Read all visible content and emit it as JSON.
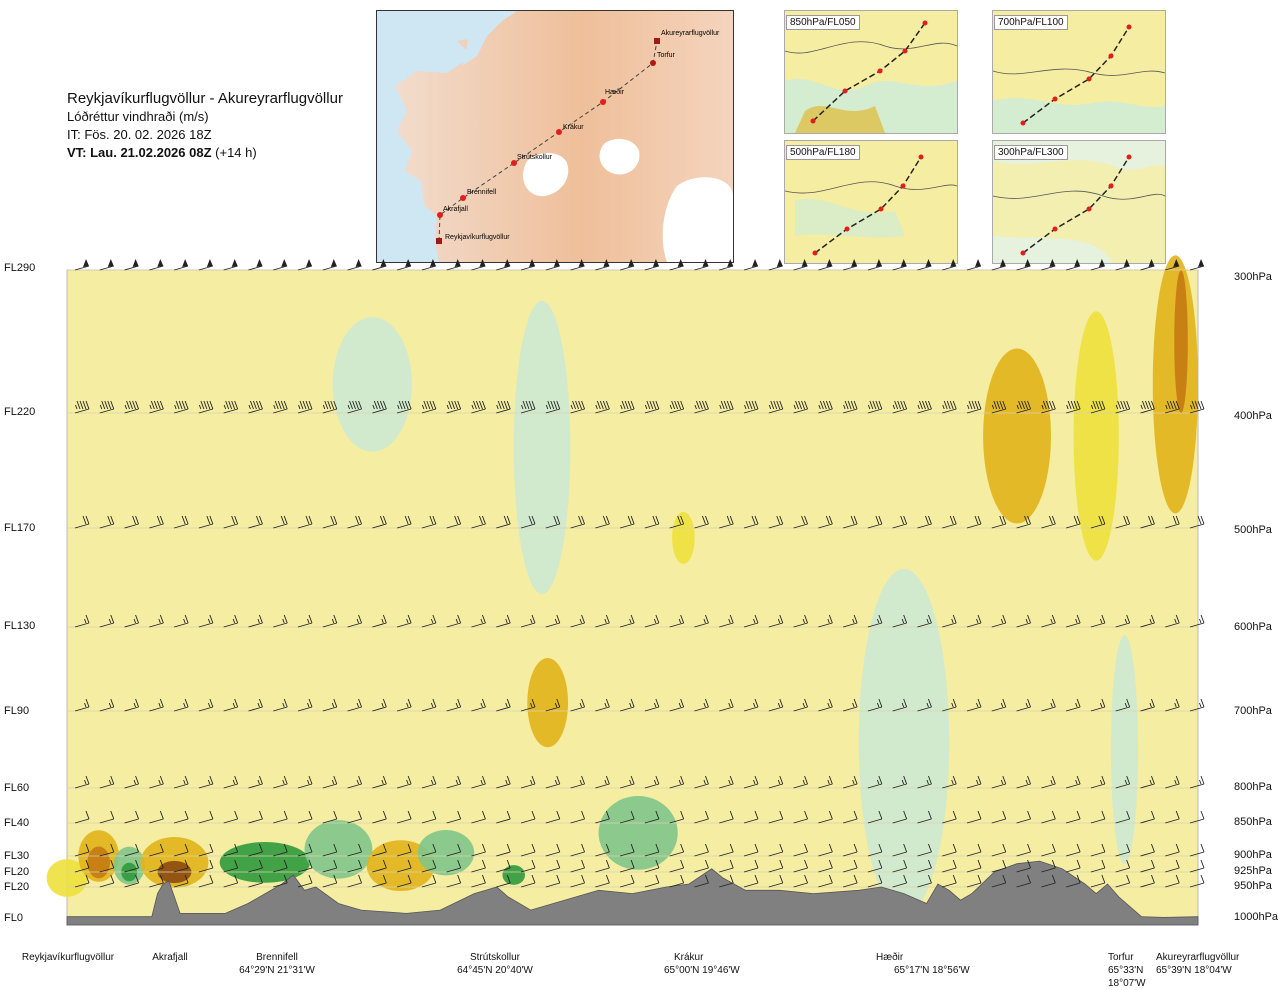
{
  "title": {
    "route": "Reykjavíkurflugvöllur - Akureyrarflugvöllur",
    "variable": "Lóðréttur vindhraði (m/s)",
    "issue_time": "IT: Fös. 20. 02. 2026 18Z",
    "valid_prefix": "VT: Lau. 21.02.2026 08Z",
    "valid_offset": "(+14 h)"
  },
  "route_map": {
    "waypoints": [
      "Reykjavíkurflugvöllur",
      "Akrafjall",
      "Brennifell",
      "Strútskollur",
      "Krákur",
      "Hæðir",
      "Torfur",
      "Akureyrarflugvöllur"
    ]
  },
  "level_panels": [
    {
      "label": "850hPa/FL050"
    },
    {
      "label": "700hPa/FL100"
    },
    {
      "label": "500hPa/FL180"
    },
    {
      "label": "300hPa/FL300"
    }
  ],
  "left_levels": [
    "FL290",
    "FL220",
    "FL170",
    "FL130",
    "FL90",
    "FL60",
    "FL40",
    "FL30",
    "FL20",
    "FL20",
    "FL0"
  ],
  "right_levels": [
    "300hPa",
    "400hPa",
    "500hPa",
    "600hPa",
    "700hPa",
    "800hPa",
    "850hPa",
    "900hPa",
    "925hPa",
    "950hPa",
    "1000hPa"
  ],
  "locations": [
    {
      "name": "Reykjavíkurflugvöllur",
      "coord": ""
    },
    {
      "name": "Akrafjall",
      "coord": ""
    },
    {
      "name": "Brennifell",
      "coord": "64°29'N 21°31'W"
    },
    {
      "name": "Strútskollur",
      "coord": "64°45'N 20°40'W"
    },
    {
      "name": "Krákur",
      "coord": "65°00'N 19°46'W"
    },
    {
      "name": "Hæðir",
      "coord": "65°17'N 18°56'W"
    },
    {
      "name": "Torfur",
      "coord": "65°33'N 18°07'W"
    },
    {
      "name": "Akureyrarflugvöllur",
      "coord": "65°39'N 18°04'W"
    }
  ],
  "chart_data": {
    "type": "heatmap",
    "title": "Reykjavíkurflugvöllur - Akureyrarflugvöllur",
    "subtitle": "Lóðréttur vindhraði (m/s)",
    "x_axis": "distance along route (0 = Reykjavíkurflugvöllur, 1 = Akureyrarflugvöllur)",
    "x_range": [
      0,
      1
    ],
    "y_axis": "pressure (hPa)",
    "y_range": [
      1000,
      300
    ],
    "pressure_levels": [
      300,
      400,
      500,
      600,
      700,
      800,
      850,
      900,
      925,
      950,
      1000
    ],
    "flight_levels": [
      "FL290",
      "FL220",
      "FL170",
      "FL130",
      "FL90",
      "FL60",
      "FL40",
      "FL30",
      "FL20",
      "FL20",
      "FL0"
    ],
    "waypoint_positions": [
      0.0,
      0.085,
      0.19,
      0.385,
      0.575,
      0.76,
      0.955,
      1.0
    ],
    "colors": {
      "background": "#f5eda2",
      "up_strong": "#2f9a3c",
      "up_medium": "#7fc58a",
      "up_weak": "#cde9d2",
      "near_zero": "#fefdf0",
      "down_weak": "#ede03c",
      "down_medium": "#e2b21a",
      "down_strong": "#c47a14",
      "down_extreme": "#8a4a0f",
      "terrain": "#808080"
    },
    "terrain_profile": [
      [
        0.0,
        995
      ],
      [
        0.075,
        995
      ],
      [
        0.08,
        960
      ],
      [
        0.085,
        945
      ],
      [
        0.09,
        940
      ],
      [
        0.095,
        965
      ],
      [
        0.1,
        990
      ],
      [
        0.14,
        990
      ],
      [
        0.16,
        975
      ],
      [
        0.19,
        945
      ],
      [
        0.2,
        930
      ],
      [
        0.21,
        955
      ],
      [
        0.22,
        950
      ],
      [
        0.24,
        975
      ],
      [
        0.26,
        985
      ],
      [
        0.3,
        990
      ],
      [
        0.33,
        985
      ],
      [
        0.36,
        960
      ],
      [
        0.38,
        950
      ],
      [
        0.39,
        965
      ],
      [
        0.41,
        985
      ],
      [
        0.43,
        975
      ],
      [
        0.45,
        965
      ],
      [
        0.47,
        955
      ],
      [
        0.5,
        960
      ],
      [
        0.53,
        950
      ],
      [
        0.55,
        945
      ],
      [
        0.57,
        920
      ],
      [
        0.58,
        935
      ],
      [
        0.6,
        955
      ],
      [
        0.63,
        955
      ],
      [
        0.66,
        960
      ],
      [
        0.7,
        955
      ],
      [
        0.72,
        950
      ],
      [
        0.74,
        960
      ],
      [
        0.76,
        975
      ],
      [
        0.77,
        945
      ],
      [
        0.78,
        955
      ],
      [
        0.79,
        970
      ],
      [
        0.8,
        960
      ],
      [
        0.82,
        925
      ],
      [
        0.84,
        912
      ],
      [
        0.86,
        908
      ],
      [
        0.88,
        920
      ],
      [
        0.9,
        945
      ],
      [
        0.91,
        960
      ],
      [
        0.92,
        945
      ],
      [
        0.93,
        965
      ],
      [
        0.95,
        995
      ],
      [
        0.97,
        996
      ],
      [
        1.0,
        995
      ]
    ],
    "vertical_velocity_zones": [
      {
        "category": "down_weak",
        "x": 0.0,
        "p": 935,
        "rx": 0.018,
        "rp": 30
      },
      {
        "category": "down_medium",
        "x": 0.028,
        "p": 900,
        "rx": 0.018,
        "rp": 40
      },
      {
        "category": "down_strong",
        "x": 0.028,
        "p": 910,
        "rx": 0.01,
        "rp": 25
      },
      {
        "category": "up_medium",
        "x": 0.055,
        "p": 915,
        "rx": 0.014,
        "rp": 30
      },
      {
        "category": "up_strong",
        "x": 0.055,
        "p": 925,
        "rx": 0.007,
        "rp": 15
      },
      {
        "category": "down_medium",
        "x": 0.095,
        "p": 910,
        "rx": 0.03,
        "rp": 40
      },
      {
        "category": "down_extreme",
        "x": 0.095,
        "p": 925,
        "rx": 0.015,
        "rp": 18
      },
      {
        "category": "up_strong",
        "x": 0.175,
        "p": 910,
        "rx": 0.04,
        "rp": 32
      },
      {
        "category": "up_medium",
        "x": 0.24,
        "p": 890,
        "rx": 0.03,
        "rp": 45
      },
      {
        "category": "down_medium",
        "x": 0.295,
        "p": 915,
        "rx": 0.03,
        "rp": 40
      },
      {
        "category": "up_medium",
        "x": 0.335,
        "p": 895,
        "rx": 0.025,
        "rp": 35
      },
      {
        "category": "up_strong",
        "x": 0.395,
        "p": 930,
        "rx": 0.01,
        "rp": 16
      },
      {
        "category": "up_weak",
        "x": 0.42,
        "p": 430,
        "rx": 0.025,
        "rp": 120
      },
      {
        "category": "up_weak",
        "x": 0.27,
        "p": 380,
        "rx": 0.035,
        "rp": 50
      },
      {
        "category": "down_medium",
        "x": 0.425,
        "p": 690,
        "rx": 0.018,
        "rp": 55
      },
      {
        "category": "up_medium",
        "x": 0.505,
        "p": 865,
        "rx": 0.035,
        "rp": 55
      },
      {
        "category": "down_weak",
        "x": 0.545,
        "p": 510,
        "rx": 0.01,
        "rp": 25
      },
      {
        "category": "up_weak",
        "x": 0.74,
        "p": 740,
        "rx": 0.04,
        "rp": 220
      },
      {
        "category": "down_medium",
        "x": 0.84,
        "p": 420,
        "rx": 0.03,
        "rp": 70
      },
      {
        "category": "down_weak",
        "x": 0.91,
        "p": 420,
        "rx": 0.02,
        "rp": 100
      },
      {
        "category": "down_medium",
        "x": 0.98,
        "p": 380,
        "rx": 0.02,
        "rp": 120
      },
      {
        "category": "down_strong",
        "x": 0.985,
        "p": 350,
        "rx": 0.006,
        "rp": 50
      },
      {
        "category": "up_weak",
        "x": 0.935,
        "p": 750,
        "rx": 0.012,
        "rp": 150
      }
    ],
    "wind_barb_rows": [
      {
        "p": 300,
        "knots": 50
      },
      {
        "p": 400,
        "knots": 45
      },
      {
        "p": 500,
        "knots": 20
      },
      {
        "p": 600,
        "knots": 15
      },
      {
        "p": 700,
        "knots": 15
      },
      {
        "p": 800,
        "knots": 15
      },
      {
        "p": 850,
        "knots": 10
      },
      {
        "p": 900,
        "knots": 10
      },
      {
        "p": 925,
        "knots": 10
      },
      {
        "p": 950,
        "knots": 10
      }
    ]
  }
}
